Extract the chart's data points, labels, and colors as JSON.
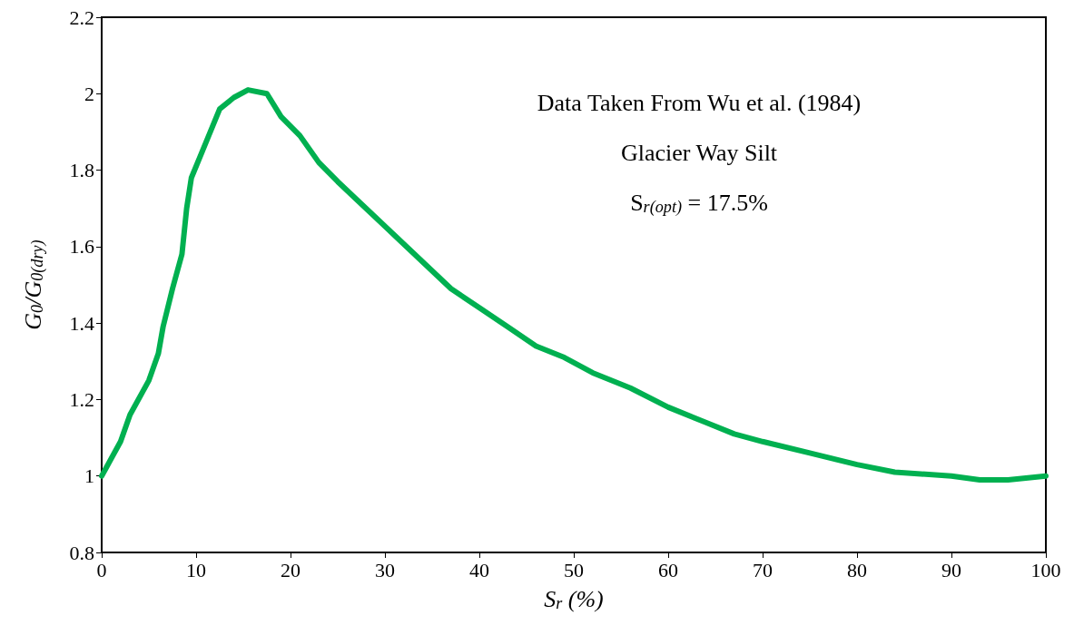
{
  "chart_data": {
    "type": "line",
    "xlabel": "S$_{r}$ (%)",
    "ylabel": "G$_{0}$/G$_{0(dry)}$",
    "annotations": [
      "Data Taken From Wu et al. (1984)",
      "Glacier Way Silt",
      "S$_{r(opt)}$ = 17.5%"
    ],
    "x": [
      0,
      2,
      3,
      5,
      6,
      6.5,
      7.5,
      8.5,
      9,
      9.5,
      11,
      12.5,
      14,
      15.5,
      17.5,
      19,
      21,
      23,
      25,
      28,
      31,
      34,
      37,
      40,
      43,
      46,
      49,
      52,
      56,
      60,
      64,
      67,
      70,
      75,
      80,
      84,
      90,
      93,
      96,
      100
    ],
    "series": [
      {
        "color": "#00b050",
        "values": [
          1.0,
          1.09,
          1.16,
          1.25,
          1.32,
          1.39,
          1.49,
          1.58,
          1.7,
          1.78,
          1.87,
          1.96,
          1.99,
          2.01,
          2.0,
          1.94,
          1.89,
          1.82,
          1.77,
          1.7,
          1.63,
          1.56,
          1.49,
          1.44,
          1.39,
          1.34,
          1.31,
          1.27,
          1.23,
          1.18,
          1.14,
          1.11,
          1.09,
          1.06,
          1.03,
          1.01,
          1.0,
          0.99,
          0.99,
          1.0
        ]
      }
    ],
    "xlim": [
      0,
      100
    ],
    "xticks": [
      0,
      10,
      20,
      30,
      40,
      50,
      60,
      70,
      80,
      90,
      100
    ],
    "ylim": [
      0.8,
      2.2
    ],
    "yticks": [
      0.8,
      1,
      1.2,
      1.4,
      1.6,
      1.8,
      2,
      2.2
    ],
    "grid": false,
    "marker": "none",
    "line_style": "solid"
  }
}
